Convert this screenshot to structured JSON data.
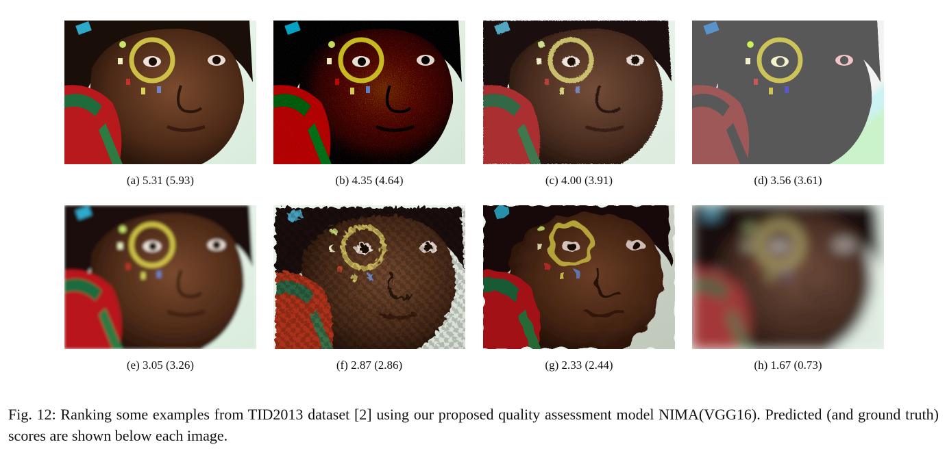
{
  "panels": [
    {
      "label": "(a)",
      "predicted": "5.31",
      "ground_truth": "(5.93)",
      "degradation": "reference"
    },
    {
      "label": "(b)",
      "predicted": "4.35",
      "ground_truth": "(4.64)",
      "degradation": "noise"
    },
    {
      "label": "(c)",
      "predicted": "4.00",
      "ground_truth": "(3.91)",
      "degradation": "grain"
    },
    {
      "label": "(d)",
      "predicted": "3.56",
      "ground_truth": "(3.61)",
      "degradation": "color-quantization"
    },
    {
      "label": "(e)",
      "predicted": "3.05",
      "ground_truth": "(3.26)",
      "degradation": "blur"
    },
    {
      "label": "(f)",
      "predicted": "2.87",
      "ground_truth": "(2.86)",
      "degradation": "checkerboard"
    },
    {
      "label": "(g)",
      "predicted": "2.33",
      "ground_truth": "(2.44)",
      "degradation": "block-artifacts"
    },
    {
      "label": "(h)",
      "predicted": "1.67",
      "ground_truth": "(0.73)",
      "degradation": "heavy-blur"
    }
  ],
  "caption": {
    "line1": "Fig. 12: Ranking some examples from TID2013 dataset [2] using our proposed quality assessment model NIMA(VGG16).",
    "line2": "Predicted (and ground truth) scores are shown below each image."
  }
}
